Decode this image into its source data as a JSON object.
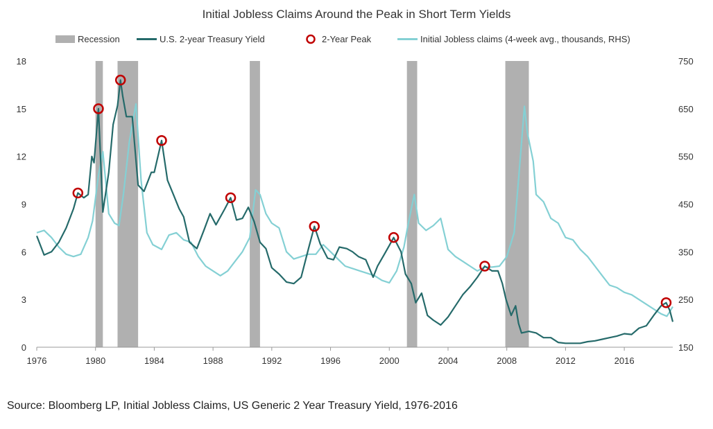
{
  "chart_data": {
    "type": "line",
    "title": "Initial Jobless Claims Around the Peak in Short Term Yields",
    "source": "Source: Bloomberg LP, Initial Jobless Claims, US Generic 2 Year Treasury Yield, 1976-2016",
    "legend": {
      "placement": "top",
      "items": [
        {
          "label": "Recession",
          "kind": "bar",
          "color": "#b0b0b0"
        },
        {
          "label": "U.S. 2-year Treasury Yield",
          "kind": "line",
          "color": "#256a6a"
        },
        {
          "label": "2-Year Peak",
          "kind": "marker",
          "color": "#c00000"
        },
        {
          "label": "Initial Jobless claims (4-week avg., thousands, RHS)",
          "kind": "line",
          "color": "#84d0d4"
        }
      ]
    },
    "x_axis": {
      "min": 1976,
      "max": 2019.3,
      "ticks": [
        1976,
        1980,
        1984,
        1988,
        1992,
        1996,
        2000,
        2004,
        2008,
        2012,
        2016
      ]
    },
    "y_left": {
      "min": 0,
      "max": 18,
      "ticks": [
        0,
        3,
        6,
        9,
        12,
        15,
        18
      ]
    },
    "y_right": {
      "min": 150,
      "max": 750,
      "ticks": [
        150,
        250,
        350,
        450,
        550,
        650,
        750
      ]
    },
    "grid": false,
    "recessions": [
      [
        1980.0,
        1980.5
      ],
      [
        1981.5,
        1982.9
      ],
      [
        1990.5,
        1991.2
      ],
      [
        2001.2,
        2001.9
      ],
      [
        2007.9,
        2009.5
      ]
    ],
    "series": [
      {
        "name": "U.S. 2-year Treasury Yield",
        "axis": "left",
        "color": "#256a6a",
        "points": [
          [
            1976,
            7.0
          ],
          [
            1976.5,
            5.8
          ],
          [
            1977,
            6.0
          ],
          [
            1977.5,
            6.6
          ],
          [
            1978,
            7.5
          ],
          [
            1978.5,
            8.7
          ],
          [
            1978.8,
            9.7
          ],
          [
            1979.2,
            9.4
          ],
          [
            1979.5,
            9.6
          ],
          [
            1979.75,
            12.0
          ],
          [
            1979.9,
            11.6
          ],
          [
            1980.2,
            15.0
          ],
          [
            1980.5,
            8.5
          ],
          [
            1980.9,
            11.0
          ],
          [
            1981.2,
            14.0
          ],
          [
            1981.5,
            15.2
          ],
          [
            1981.7,
            16.8
          ],
          [
            1981.85,
            15.8
          ],
          [
            1982.1,
            14.5
          ],
          [
            1982.5,
            14.5
          ],
          [
            1982.9,
            10.2
          ],
          [
            1983.3,
            9.8
          ],
          [
            1983.8,
            11.0
          ],
          [
            1984.0,
            11.0
          ],
          [
            1984.5,
            13.0
          ],
          [
            1984.9,
            10.5
          ],
          [
            1985.3,
            9.6
          ],
          [
            1985.7,
            8.7
          ],
          [
            1986.0,
            8.2
          ],
          [
            1986.4,
            6.6
          ],
          [
            1986.9,
            6.2
          ],
          [
            1987.4,
            7.4
          ],
          [
            1987.8,
            8.4
          ],
          [
            1988.2,
            7.7
          ],
          [
            1988.8,
            8.7
          ],
          [
            1989.2,
            9.4
          ],
          [
            1989.6,
            8.0
          ],
          [
            1990.0,
            8.1
          ],
          [
            1990.4,
            8.8
          ],
          [
            1990.8,
            7.9
          ],
          [
            1991.2,
            6.6
          ],
          [
            1991.6,
            6.2
          ],
          [
            1992.0,
            5.0
          ],
          [
            1992.5,
            4.6
          ],
          [
            1993.0,
            4.1
          ],
          [
            1993.5,
            4.0
          ],
          [
            1994.0,
            4.4
          ],
          [
            1994.5,
            6.2
          ],
          [
            1994.9,
            7.6
          ],
          [
            1995.3,
            6.5
          ],
          [
            1995.8,
            5.6
          ],
          [
            1996.2,
            5.5
          ],
          [
            1996.6,
            6.3
          ],
          [
            1997.1,
            6.2
          ],
          [
            1997.5,
            6.0
          ],
          [
            1997.9,
            5.7
          ],
          [
            1998.4,
            5.5
          ],
          [
            1998.9,
            4.4
          ],
          [
            1999.2,
            5.1
          ],
          [
            1999.7,
            5.9
          ],
          [
            2000.0,
            6.4
          ],
          [
            2000.3,
            6.9
          ],
          [
            2000.8,
            6.0
          ],
          [
            2001.1,
            4.6
          ],
          [
            2001.5,
            4.0
          ],
          [
            2001.8,
            2.8
          ],
          [
            2002.2,
            3.4
          ],
          [
            2002.6,
            2.0
          ],
          [
            2003.0,
            1.7
          ],
          [
            2003.5,
            1.4
          ],
          [
            2004.0,
            1.9
          ],
          [
            2004.5,
            2.6
          ],
          [
            2005.0,
            3.3
          ],
          [
            2005.5,
            3.8
          ],
          [
            2006.0,
            4.4
          ],
          [
            2006.5,
            5.1
          ],
          [
            2007.0,
            4.8
          ],
          [
            2007.4,
            4.8
          ],
          [
            2007.7,
            4.0
          ],
          [
            2007.95,
            3.0
          ],
          [
            2008.3,
            2.0
          ],
          [
            2008.6,
            2.6
          ],
          [
            2008.8,
            1.5
          ],
          [
            2009.0,
            0.9
          ],
          [
            2009.5,
            1.0
          ],
          [
            2010.0,
            0.9
          ],
          [
            2010.5,
            0.6
          ],
          [
            2011.0,
            0.6
          ],
          [
            2011.5,
            0.3
          ],
          [
            2012.0,
            0.25
          ],
          [
            2012.5,
            0.25
          ],
          [
            2013.0,
            0.25
          ],
          [
            2013.5,
            0.35
          ],
          [
            2014.0,
            0.4
          ],
          [
            2014.5,
            0.5
          ],
          [
            2015.0,
            0.6
          ],
          [
            2015.5,
            0.7
          ],
          [
            2016.0,
            0.85
          ],
          [
            2016.5,
            0.8
          ],
          [
            2017.0,
            1.2
          ],
          [
            2017.5,
            1.35
          ],
          [
            2018.0,
            2.0
          ],
          [
            2018.5,
            2.6
          ],
          [
            2018.85,
            2.8
          ],
          [
            2019.1,
            2.3
          ],
          [
            2019.3,
            1.6
          ]
        ]
      },
      {
        "name": "Initial Jobless claims (4-week avg., thousands, RHS)",
        "axis": "right",
        "color": "#84d0d4",
        "points": [
          [
            1976,
            390
          ],
          [
            1976.5,
            395
          ],
          [
            1977,
            380
          ],
          [
            1977.5,
            360
          ],
          [
            1978,
            345
          ],
          [
            1978.5,
            340
          ],
          [
            1979,
            345
          ],
          [
            1979.5,
            380
          ],
          [
            1979.8,
            415
          ],
          [
            1980.2,
            510
          ],
          [
            1980.5,
            560
          ],
          [
            1980.9,
            430
          ],
          [
            1981.3,
            410
          ],
          [
            1981.6,
            405
          ],
          [
            1981.9,
            470
          ],
          [
            1982.3,
            580
          ],
          [
            1982.75,
            660
          ],
          [
            1983.1,
            500
          ],
          [
            1983.5,
            390
          ],
          [
            1983.9,
            365
          ],
          [
            1984.5,
            355
          ],
          [
            1985.0,
            385
          ],
          [
            1985.5,
            390
          ],
          [
            1986.0,
            375
          ],
          [
            1986.5,
            370
          ],
          [
            1987.0,
            340
          ],
          [
            1987.5,
            320
          ],
          [
            1988.0,
            310
          ],
          [
            1988.5,
            300
          ],
          [
            1989.0,
            310
          ],
          [
            1989.5,
            330
          ],
          [
            1990.0,
            350
          ],
          [
            1990.5,
            380
          ],
          [
            1990.9,
            480
          ],
          [
            1991.2,
            470
          ],
          [
            1991.6,
            430
          ],
          [
            1992.0,
            410
          ],
          [
            1992.5,
            400
          ],
          [
            1993.0,
            350
          ],
          [
            1993.5,
            335
          ],
          [
            1994.0,
            340
          ],
          [
            1994.5,
            345
          ],
          [
            1995.0,
            345
          ],
          [
            1995.5,
            365
          ],
          [
            1996.0,
            350
          ],
          [
            1996.5,
            335
          ],
          [
            1997.0,
            320
          ],
          [
            1997.5,
            315
          ],
          [
            1998.0,
            310
          ],
          [
            1998.5,
            305
          ],
          [
            1999.0,
            300
          ],
          [
            1999.5,
            290
          ],
          [
            2000.0,
            285
          ],
          [
            2000.5,
            310
          ],
          [
            2001.0,
            360
          ],
          [
            2001.3,
            410
          ],
          [
            2001.7,
            470
          ],
          [
            2002.0,
            410
          ],
          [
            2002.5,
            395
          ],
          [
            2003.0,
            405
          ],
          [
            2003.5,
            420
          ],
          [
            2004.0,
            355
          ],
          [
            2004.5,
            340
          ],
          [
            2005.0,
            330
          ],
          [
            2005.5,
            320
          ],
          [
            2006.0,
            310
          ],
          [
            2006.5,
            318
          ],
          [
            2007.0,
            318
          ],
          [
            2007.5,
            320
          ],
          [
            2008.0,
            340
          ],
          [
            2008.5,
            390
          ],
          [
            2008.9,
            540
          ],
          [
            2009.2,
            655
          ],
          [
            2009.4,
            600
          ],
          [
            2009.8,
            540
          ],
          [
            2010.0,
            470
          ],
          [
            2010.5,
            455
          ],
          [
            2011.0,
            420
          ],
          [
            2011.5,
            410
          ],
          [
            2012.0,
            380
          ],
          [
            2012.5,
            375
          ],
          [
            2013.0,
            355
          ],
          [
            2013.5,
            340
          ],
          [
            2014.0,
            320
          ],
          [
            2014.5,
            300
          ],
          [
            2015.0,
            280
          ],
          [
            2015.5,
            275
          ],
          [
            2016.0,
            265
          ],
          [
            2016.5,
            260
          ],
          [
            2017.0,
            250
          ],
          [
            2017.5,
            240
          ],
          [
            2018.0,
            230
          ],
          [
            2018.5,
            220
          ],
          [
            2018.9,
            215
          ],
          [
            2019.1,
            225
          ],
          [
            2019.3,
            235
          ]
        ]
      }
    ],
    "peaks": [
      [
        1978.8,
        9.7
      ],
      [
        1980.2,
        15.0
      ],
      [
        1981.7,
        16.8
      ],
      [
        1984.5,
        13.0
      ],
      [
        1989.2,
        9.4
      ],
      [
        1994.9,
        7.6
      ],
      [
        2000.3,
        6.9
      ],
      [
        2006.5,
        5.1
      ],
      [
        2018.85,
        2.8
      ]
    ]
  }
}
